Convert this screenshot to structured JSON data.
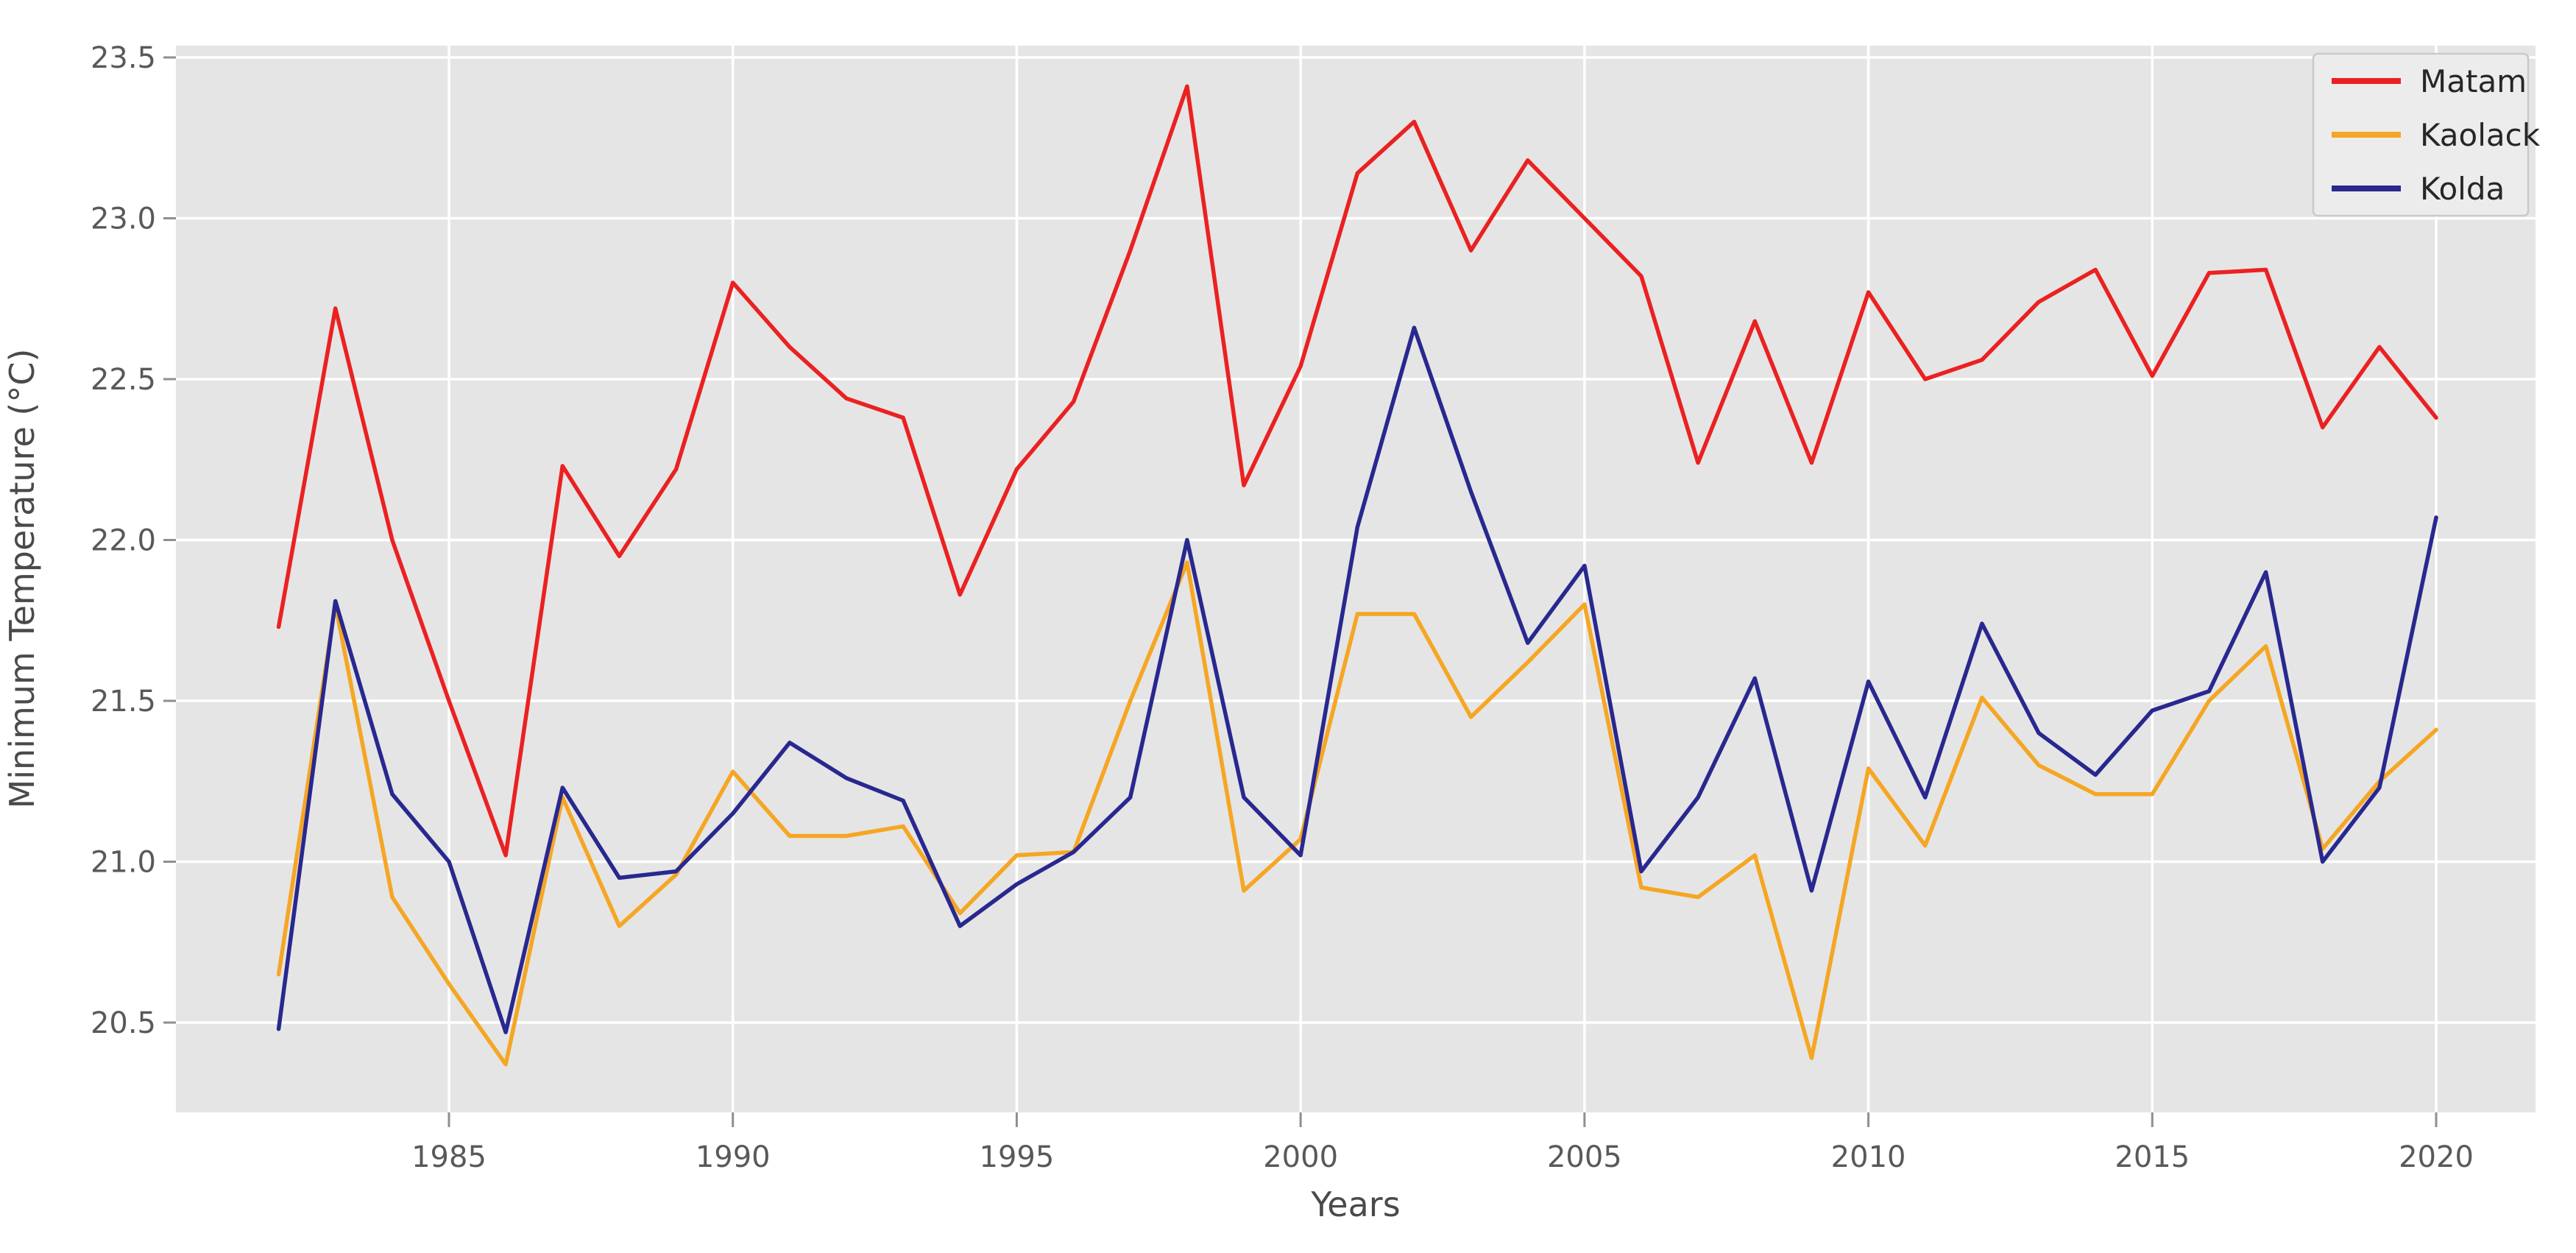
{
  "chart_data": {
    "type": "line",
    "title": "",
    "xlabel": "Years",
    "ylabel": "Minimum Temperature (°C)",
    "x": [
      1982,
      1983,
      1984,
      1985,
      1986,
      1987,
      1988,
      1989,
      1990,
      1991,
      1992,
      1993,
      1994,
      1995,
      1996,
      1997,
      1998,
      1999,
      2000,
      2001,
      2002,
      2003,
      2004,
      2005,
      2006,
      2007,
      2008,
      2009,
      2010,
      2011,
      2012,
      2013,
      2014,
      2015,
      2016,
      2017,
      2018,
      2019,
      2020
    ],
    "series": [
      {
        "name": "Matam",
        "color": "#eb2121",
        "values": [
          21.73,
          22.72,
          22.0,
          21.5,
          21.02,
          22.23,
          21.95,
          22.22,
          22.8,
          22.6,
          22.44,
          22.38,
          21.83,
          22.22,
          22.43,
          22.9,
          23.41,
          22.17,
          22.54,
          23.14,
          23.3,
          22.9,
          23.18,
          23.0,
          22.82,
          22.24,
          22.68,
          22.24,
          22.77,
          22.5,
          22.56,
          22.74,
          22.84,
          22.51,
          22.83,
          22.84,
          22.35,
          22.6,
          22.38
        ]
      },
      {
        "name": "Kaolack",
        "color": "#f5a623",
        "values": [
          20.65,
          21.8,
          20.89,
          20.62,
          20.37,
          21.2,
          20.8,
          20.96,
          21.28,
          21.08,
          21.08,
          21.11,
          20.84,
          21.02,
          21.03,
          21.5,
          21.93,
          20.91,
          21.07,
          21.77,
          21.77,
          21.45,
          21.62,
          21.8,
          20.92,
          20.89,
          21.02,
          20.39,
          21.29,
          21.05,
          21.51,
          21.3,
          21.21,
          21.21,
          21.5,
          21.67,
          21.04,
          21.25,
          21.41
        ]
      },
      {
        "name": "Kolda",
        "color": "#28288f",
        "values": [
          20.48,
          21.81,
          21.21,
          21.0,
          20.47,
          21.23,
          20.95,
          20.97,
          21.15,
          21.37,
          21.26,
          21.19,
          20.8,
          20.93,
          21.03,
          21.2,
          22.0,
          21.2,
          21.02,
          22.04,
          22.66,
          22.15,
          21.68,
          21.92,
          20.97,
          21.2,
          21.57,
          20.91,
          21.56,
          21.2,
          21.74,
          21.4,
          21.27,
          21.47,
          21.53,
          21.9,
          21.0,
          21.23,
          22.07
        ]
      }
    ],
    "xticks": [
      1985,
      1990,
      1995,
      2000,
      2005,
      2010,
      2015,
      2020
    ],
    "xtick_labels": [
      "1985",
      "1990",
      "1995",
      "2000",
      "2005",
      "2010",
      "2015",
      "2020"
    ],
    "yticks": [
      23.5,
      23.0,
      22.5,
      22.0,
      21.5,
      21.0,
      20.5
    ],
    "ytick_labels": [
      "23.5",
      "23.0",
      "22.5",
      "22.0",
      "21.5",
      "21.0",
      "20.5"
    ],
    "xlim": [
      1980.2,
      2021.7
    ],
    "ylim": [
      20.22,
      23.54
    ],
    "grid": true,
    "legend_position": "upper right",
    "plot_bg_color": "#e5e5e5",
    "grid_color": "#ffffff",
    "tick_text_color": "#595959",
    "axis_label_color": "#4a4a4a",
    "legend_bg_color": "#ececec",
    "legend_border_color": "#c9c9c9",
    "legend_text_color": "#262626"
  }
}
